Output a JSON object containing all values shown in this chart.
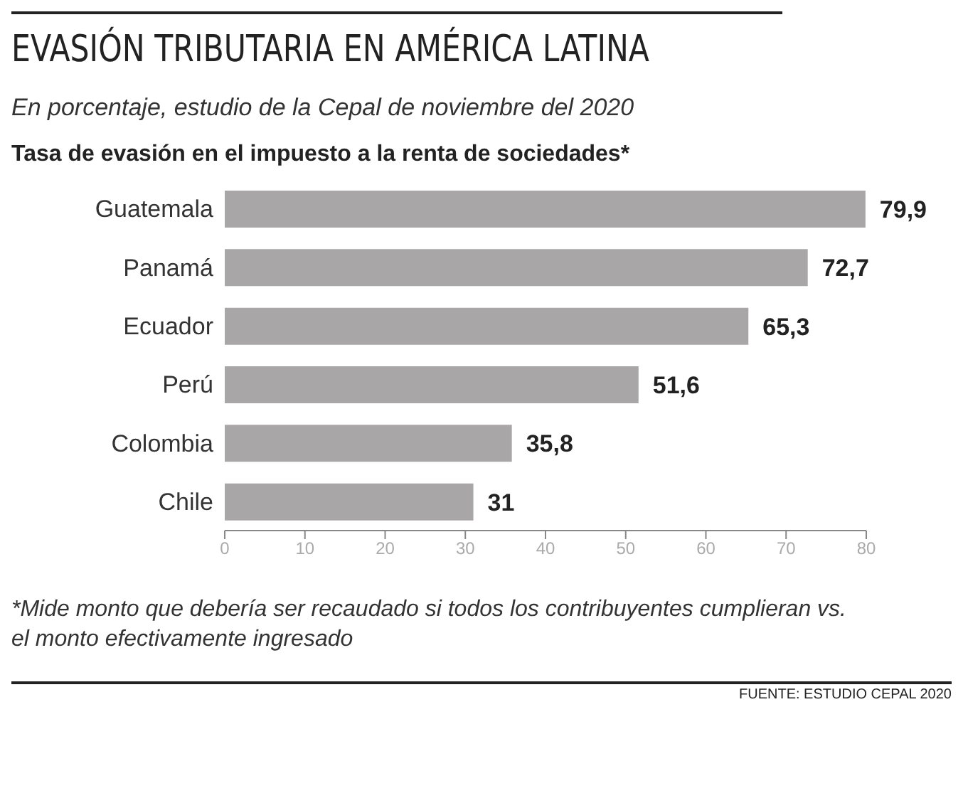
{
  "chart_data": {
    "type": "bar",
    "orientation": "horizontal",
    "title": "EVASIÓN TRIBUTARIA EN AMÉRICA LATINA",
    "subtitle": "En porcentaje, estudio de la Cepal de noviembre del 2020",
    "annotations": [
      "Tasa de evasión en el impuesto a la renta de sociedades*",
      "*Mide monto que debería ser recaudado si todos los contribuyentes cumplieran vs. el monto efectivamente ingresado",
      "FUENTE: ESTUDIO CEPAL 2020"
    ],
    "categories": [
      "Guatemala",
      "Panamá",
      "Ecuador",
      "Perú",
      "Colombia",
      "Chile"
    ],
    "values": [
      79.9,
      72.7,
      65.3,
      51.6,
      35.8,
      31
    ],
    "value_labels": [
      "79,9",
      "72,7",
      "65,3",
      "51,6",
      "35,8",
      "31"
    ],
    "color": "#a9a6a8",
    "xlim": [
      0,
      80
    ],
    "xticks": [
      0,
      10,
      20,
      30,
      40,
      50,
      60,
      70,
      80
    ],
    "grid": false,
    "legend": false
  }
}
